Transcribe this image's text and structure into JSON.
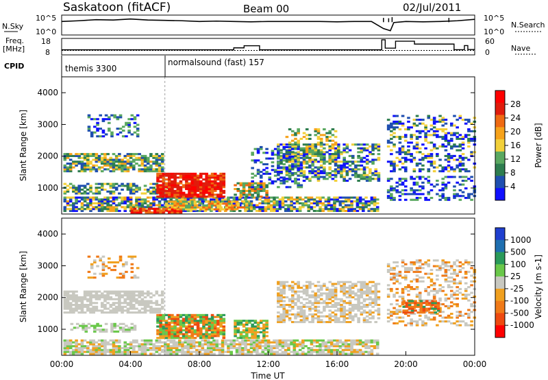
{
  "header": {
    "station": "Saskatoon (fitACF)",
    "beam": "Beam 00",
    "date": "02/Jul/2011"
  },
  "labels": {
    "nsky": "N.Sky",
    "nsearch": "N.Search",
    "freq_line1": "Freq.",
    "freq_line2": "[MHz]",
    "nave": "Nave",
    "cpid": "CPID",
    "noise_left_ticks": [
      "10^5",
      "10^0"
    ],
    "noise_right_ticks": [
      "10^5",
      "10^0"
    ],
    "freq_left_ticks": [
      "18",
      "8"
    ],
    "freq_right_ticks": [
      "60",
      "0"
    ]
  },
  "cpid_segments": [
    {
      "label": "themis 3300",
      "start_hour": 0
    },
    {
      "label": "normalsound (fast) 157",
      "start_hour": 6
    }
  ],
  "colors": {
    "power": [
      "#1010ff",
      "#1f4fb0",
      "#2e7d4f",
      "#5aa860",
      "#f2d03a",
      "#f6a21a",
      "#ef6a12",
      "#e01c0c",
      "#ff0000"
    ],
    "velocity_pos": [
      "#1f3fcf",
      "#1f6fb0",
      "#2a9a5a",
      "#6ac84a"
    ],
    "velocity_gray": "#c8c8c0",
    "velocity_neg": [
      "#f0a020",
      "#f07a18",
      "#ee4a10",
      "#ff0000"
    ]
  },
  "chart_data": [
    {
      "type": "line",
      "name": "noise",
      "x_unit": "hour UT",
      "left_label": "N.Sky",
      "right_label": "N.Search",
      "nsky_log": [
        [
          0,
          3.6
        ],
        [
          1,
          3.8
        ],
        [
          2,
          4.1
        ],
        [
          3,
          4.0
        ],
        [
          4,
          4.3
        ],
        [
          5,
          4.0
        ],
        [
          6,
          3.9
        ],
        [
          7,
          3.8
        ],
        [
          8,
          3.6
        ],
        [
          9,
          3.7
        ],
        [
          10,
          3.6
        ],
        [
          11,
          3.5
        ],
        [
          12,
          3.6
        ],
        [
          13,
          3.6
        ],
        [
          14,
          3.6
        ],
        [
          15,
          3.6
        ],
        [
          16,
          3.5
        ],
        [
          17,
          3.6
        ],
        [
          18,
          3.6
        ],
        [
          18.7,
          1.6
        ],
        [
          19.1,
          1.0
        ],
        [
          19.3,
          3.3
        ],
        [
          20,
          3.6
        ],
        [
          21,
          3.5
        ],
        [
          22,
          3.6
        ],
        [
          23,
          3.8
        ],
        [
          24,
          4.2
        ]
      ],
      "spikes_log": [
        [
          18.7,
          4.6
        ],
        [
          19.0,
          4.5
        ],
        [
          19.2,
          4.8
        ],
        [
          22.5,
          4.6
        ]
      ]
    },
    {
      "type": "line",
      "name": "frequency_nave",
      "x_unit": "hour UT",
      "left_label": "Freq. [MHz]",
      "right_label": "Nave",
      "ylim_freq": [
        8,
        18
      ],
      "ylim_nave": [
        0,
        60
      ],
      "freq_step": [
        [
          0,
          10.9
        ],
        [
          10,
          10.9
        ],
        [
          10,
          12.2
        ],
        [
          10.6,
          12.2
        ],
        [
          10.6,
          13.6
        ],
        [
          11.5,
          13.6
        ],
        [
          11.5,
          10.9
        ],
        [
          18.6,
          10.9
        ],
        [
          18.6,
          17.5
        ],
        [
          18.8,
          17.5
        ],
        [
          18.8,
          12.0
        ],
        [
          19.4,
          12.0
        ],
        [
          19.4,
          16.6
        ],
        [
          20.5,
          16.6
        ],
        [
          20.5,
          14.7
        ],
        [
          22.8,
          14.7
        ],
        [
          22.8,
          11.0
        ],
        [
          23.4,
          11.0
        ],
        [
          23.4,
          13.7
        ],
        [
          23.6,
          13.7
        ],
        [
          23.6,
          11.1
        ],
        [
          24,
          11.1
        ]
      ],
      "nave_dotted": [
        [
          0,
          15
        ],
        [
          24,
          15
        ]
      ]
    },
    {
      "type": "heatmap",
      "name": "power",
      "x_unit": "hour UT",
      "xlim": [
        0,
        24
      ],
      "ylim": [
        180,
        4500
      ],
      "y_ticks": [
        1000,
        2000,
        3000,
        4000
      ],
      "ylabel": "Slant Range [km]",
      "colorbar_label": "Power [dB]",
      "colorbar_ticks": [
        4,
        8,
        12,
        16,
        20,
        24,
        28
      ],
      "data_gap_hours": [
        18.6,
        18.85
      ]
    },
    {
      "type": "heatmap",
      "name": "velocity",
      "x_unit": "hour UT",
      "xlim": [
        0,
        24
      ],
      "ylim": [
        180,
        4500
      ],
      "y_ticks": [
        1000,
        2000,
        3000,
        4000
      ],
      "ylabel": "Slant Range [km]",
      "xlabel": "Time UT",
      "x_ticks": [
        "00:00",
        "04:00",
        "08:00",
        "12:00",
        "16:00",
        "20:00",
        "00:00"
      ],
      "colorbar_label": "Velocity [m s-1]",
      "colorbar_ticks": [
        1000,
        500,
        100,
        25,
        -25,
        -100,
        -500,
        -1000
      ],
      "data_gap_hours": [
        18.6,
        18.85
      ]
    }
  ]
}
